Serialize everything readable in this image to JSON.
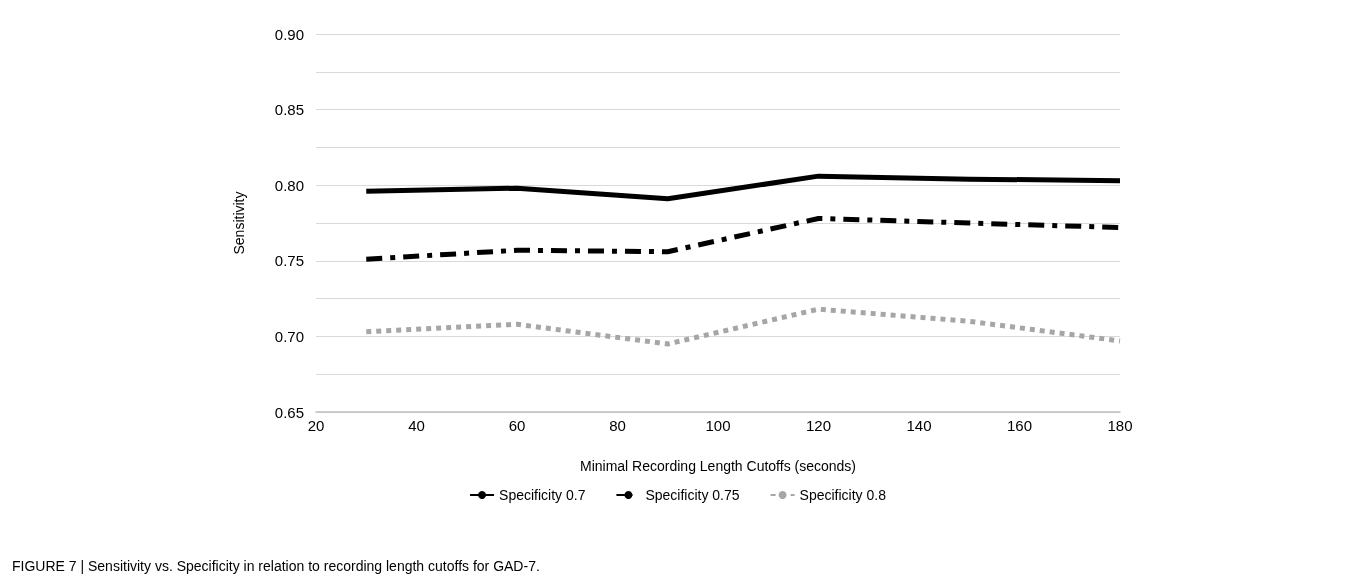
{
  "chart_data": {
    "type": "line",
    "xlabel": "Minimal Recording Length Cutoffs (seconds)",
    "ylabel": "Sensitivity",
    "x": [
      30,
      60,
      90,
      120,
      150,
      180
    ],
    "series": [
      {
        "name": "Specificity 0.7",
        "color": "#000000",
        "line_style": "solid",
        "values": [
          0.796,
          0.798,
          0.791,
          0.806,
          0.804,
          0.803
        ]
      },
      {
        "name": "Specificity 0.75",
        "color": "#000000",
        "line_style": "dashed",
        "values": [
          0.751,
          0.757,
          0.756,
          0.778,
          0.775,
          0.772
        ]
      },
      {
        "name": "Specificity 0.8",
        "color": "#a6a6a6",
        "line_style": "dotted",
        "values": [
          0.703,
          0.708,
          0.695,
          0.718,
          0.71,
          0.697
        ]
      }
    ],
    "xlim": [
      20,
      180
    ],
    "xticks": [
      20,
      40,
      60,
      80,
      100,
      120,
      140,
      160,
      180
    ],
    "ylim": [
      0.65,
      0.9
    ],
    "yticks": [
      0.65,
      {
        "value": 0.675,
        "label": null
      },
      {
        "value": 0.7,
        "label": "0.70"
      },
      {
        "value": 0.725,
        "label": null
      },
      0.75,
      {
        "value": 0.775,
        "label": null
      },
      {
        "value": 0.8,
        "label": "0.80"
      },
      {
        "value": 0.825,
        "label": null
      },
      0.85,
      {
        "value": 0.875,
        "label": null
      },
      {
        "value": 0.9,
        "label": "0.90"
      }
    ],
    "grid": "y",
    "legend": "bottom",
    "marker": "none",
    "annotations": [
      "FIGURE 7 | Sensitivity vs. Specificity in relation to recording length cutoffs for GAD-7."
    ]
  }
}
